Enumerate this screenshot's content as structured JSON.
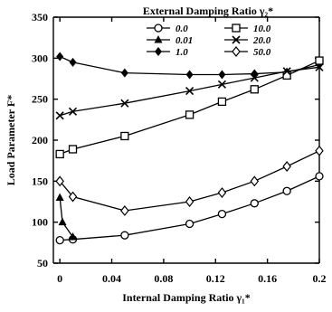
{
  "chart_data": {
    "type": "line",
    "title": "External Damping Ratio γ₂*",
    "xlabel": "Internal Damping Ratio γ₁*",
    "ylabel": "Load Parameter F*",
    "xlim": [
      -0.005,
      0.2
    ],
    "ylim": [
      50,
      350
    ],
    "x_ticks": [
      {
        "value": 0,
        "label": "0"
      },
      {
        "value": 0.04,
        "label": "0.04"
      },
      {
        "value": 0.08,
        "label": "0.08"
      },
      {
        "value": 0.12,
        "label": "0.12"
      },
      {
        "value": 0.16,
        "label": "0.16"
      },
      {
        "value": 0.2,
        "label": "0.2"
      }
    ],
    "y_ticks": [
      {
        "value": 50,
        "label": "50"
      },
      {
        "value": 100,
        "label": "100"
      },
      {
        "value": 150,
        "label": "150"
      },
      {
        "value": 200,
        "label": "200"
      },
      {
        "value": 250,
        "label": "250"
      },
      {
        "value": 300,
        "label": "300"
      },
      {
        "value": 350,
        "label": "350"
      }
    ],
    "grid": false,
    "legend_position": "top-right",
    "series": [
      {
        "name": "0.0",
        "marker": "circle-open",
        "x": [
          0,
          0.01,
          0.05,
          0.1,
          0.125,
          0.15,
          0.175,
          0.2
        ],
        "y": [
          78,
          79,
          84,
          98,
          110,
          123,
          138,
          156
        ]
      },
      {
        "name": "0.01",
        "marker": "triangle",
        "x": [
          0,
          0.002,
          0.01
        ],
        "y": [
          130,
          100,
          82
        ]
      },
      {
        "name": "1.0",
        "marker": "diamond-filled",
        "x": [
          0,
          0.01,
          0.05,
          0.1,
          0.125,
          0.15,
          0.175,
          0.2
        ],
        "y": [
          302,
          295,
          282,
          280,
          280,
          281,
          283,
          292
        ]
      },
      {
        "name": "10.0",
        "marker": "square-open",
        "x": [
          0,
          0.01,
          0.05,
          0.1,
          0.125,
          0.15,
          0.175,
          0.2
        ],
        "y": [
          183,
          189,
          205,
          231,
          247,
          262,
          279,
          297
        ]
      },
      {
        "name": "20.0",
        "marker": "x",
        "x": [
          0,
          0.01,
          0.05,
          0.1,
          0.125,
          0.15,
          0.175,
          0.2
        ],
        "y": [
          230,
          235,
          245,
          260,
          268,
          276,
          284,
          289
        ]
      },
      {
        "name": "50.0",
        "marker": "diamond-open",
        "x": [
          0,
          0.01,
          0.05,
          0.1,
          0.125,
          0.15,
          0.175,
          0.2
        ],
        "y": [
          150,
          131,
          114,
          125,
          136,
          150,
          168,
          187
        ]
      }
    ]
  }
}
